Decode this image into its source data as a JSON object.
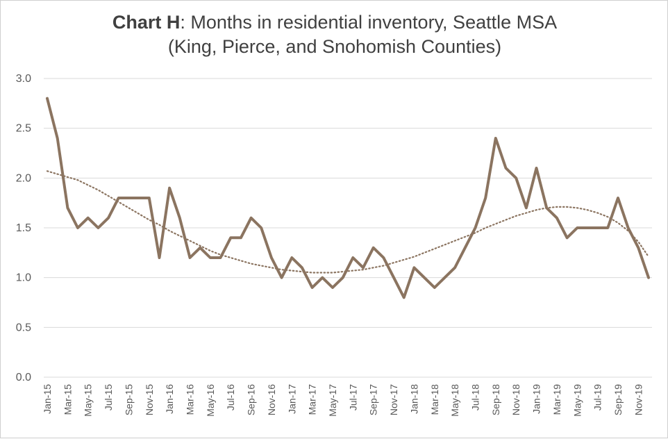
{
  "title": {
    "bold": "Chart H",
    "rest": ": Months in residential inventory, Seattle MSA",
    "line2": "(King, Pierce, and Snohomish Counties)"
  },
  "colors": {
    "series": "#8B7460",
    "grid": "#d9d9d9",
    "text": "#595959"
  },
  "chart_data": {
    "type": "line",
    "title": "Chart H: Months in residential inventory, Seattle MSA (King, Pierce, and Snohomish Counties)",
    "xlabel": "",
    "ylabel": "",
    "ylim": [
      0,
      3
    ],
    "yticks": [
      "0.0",
      "0.5",
      "1.0",
      "1.5",
      "2.0",
      "2.5",
      "3.0"
    ],
    "grid": true,
    "legend": "none",
    "x": [
      "Jan-15",
      "Feb-15",
      "Mar-15",
      "Apr-15",
      "May-15",
      "Jun-15",
      "Jul-15",
      "Aug-15",
      "Sep-15",
      "Oct-15",
      "Nov-15",
      "Dec-15",
      "Jan-16",
      "Feb-16",
      "Mar-16",
      "Apr-16",
      "May-16",
      "Jun-16",
      "Jul-16",
      "Aug-16",
      "Sep-16",
      "Oct-16",
      "Nov-16",
      "Dec-16",
      "Jan-17",
      "Feb-17",
      "Mar-17",
      "Apr-17",
      "May-17",
      "Jun-17",
      "Jul-17",
      "Aug-17",
      "Sep-17",
      "Oct-17",
      "Nov-17",
      "Dec-17",
      "Jan-18",
      "Feb-18",
      "Mar-18",
      "Apr-18",
      "May-18",
      "Jun-18",
      "Jul-18",
      "Aug-18",
      "Sep-18",
      "Oct-18",
      "Nov-18",
      "Dec-18",
      "Jan-19",
      "Feb-19",
      "Mar-19",
      "Apr-19",
      "May-19",
      "Jun-19",
      "Jul-19",
      "Aug-19",
      "Sep-19",
      "Oct-19",
      "Nov-19",
      "Dec-19"
    ],
    "xtick_labels": [
      "Jan-15",
      "Mar-15",
      "May-15",
      "Jul-15",
      "Sep-15",
      "Nov-15",
      "Jan-16",
      "Mar-16",
      "May-16",
      "Jul-16",
      "Sep-16",
      "Nov-16",
      "Jan-17",
      "Mar-17",
      "May-17",
      "Jul-17",
      "Sep-17",
      "Nov-17",
      "Jan-18",
      "Mar-18",
      "May-18",
      "Jul-18",
      "Sep-18",
      "Nov-18",
      "Jan-19",
      "Mar-19",
      "May-19",
      "Jul-19",
      "Sep-19",
      "Nov-19"
    ],
    "series": [
      {
        "values": [
          2.8,
          2.4,
          1.7,
          1.5,
          1.6,
          1.5,
          1.6,
          1.8,
          1.8,
          1.8,
          1.8,
          1.2,
          1.9,
          1.6,
          1.2,
          1.3,
          1.2,
          1.2,
          1.4,
          1.4,
          1.6,
          1.5,
          1.2,
          1.0,
          1.2,
          1.1,
          0.9,
          1.0,
          0.9,
          1.0,
          1.2,
          1.1,
          1.3,
          1.2,
          1.0,
          0.8,
          1.1,
          1.0,
          0.9,
          1.0,
          1.1,
          1.3,
          1.5,
          1.8,
          2.4,
          2.1,
          2.0,
          1.7,
          2.1,
          1.7,
          1.6,
          1.4,
          1.5,
          1.5,
          1.5,
          1.5,
          1.8,
          1.5,
          1.3,
          1.0
        ]
      }
    ],
    "trendline": {
      "style": "dotted",
      "values": [
        2.07,
        2.04,
        2.01,
        1.98,
        1.93,
        1.88,
        1.82,
        1.76,
        1.7,
        1.64,
        1.58,
        1.53,
        1.47,
        1.42,
        1.37,
        1.32,
        1.27,
        1.23,
        1.2,
        1.17,
        1.14,
        1.12,
        1.1,
        1.08,
        1.07,
        1.06,
        1.05,
        1.05,
        1.05,
        1.06,
        1.07,
        1.08,
        1.1,
        1.12,
        1.15,
        1.18,
        1.21,
        1.25,
        1.29,
        1.33,
        1.37,
        1.41,
        1.45,
        1.5,
        1.54,
        1.58,
        1.62,
        1.65,
        1.68,
        1.7,
        1.71,
        1.71,
        1.7,
        1.68,
        1.65,
        1.61,
        1.55,
        1.47,
        1.36,
        1.21
      ]
    }
  }
}
